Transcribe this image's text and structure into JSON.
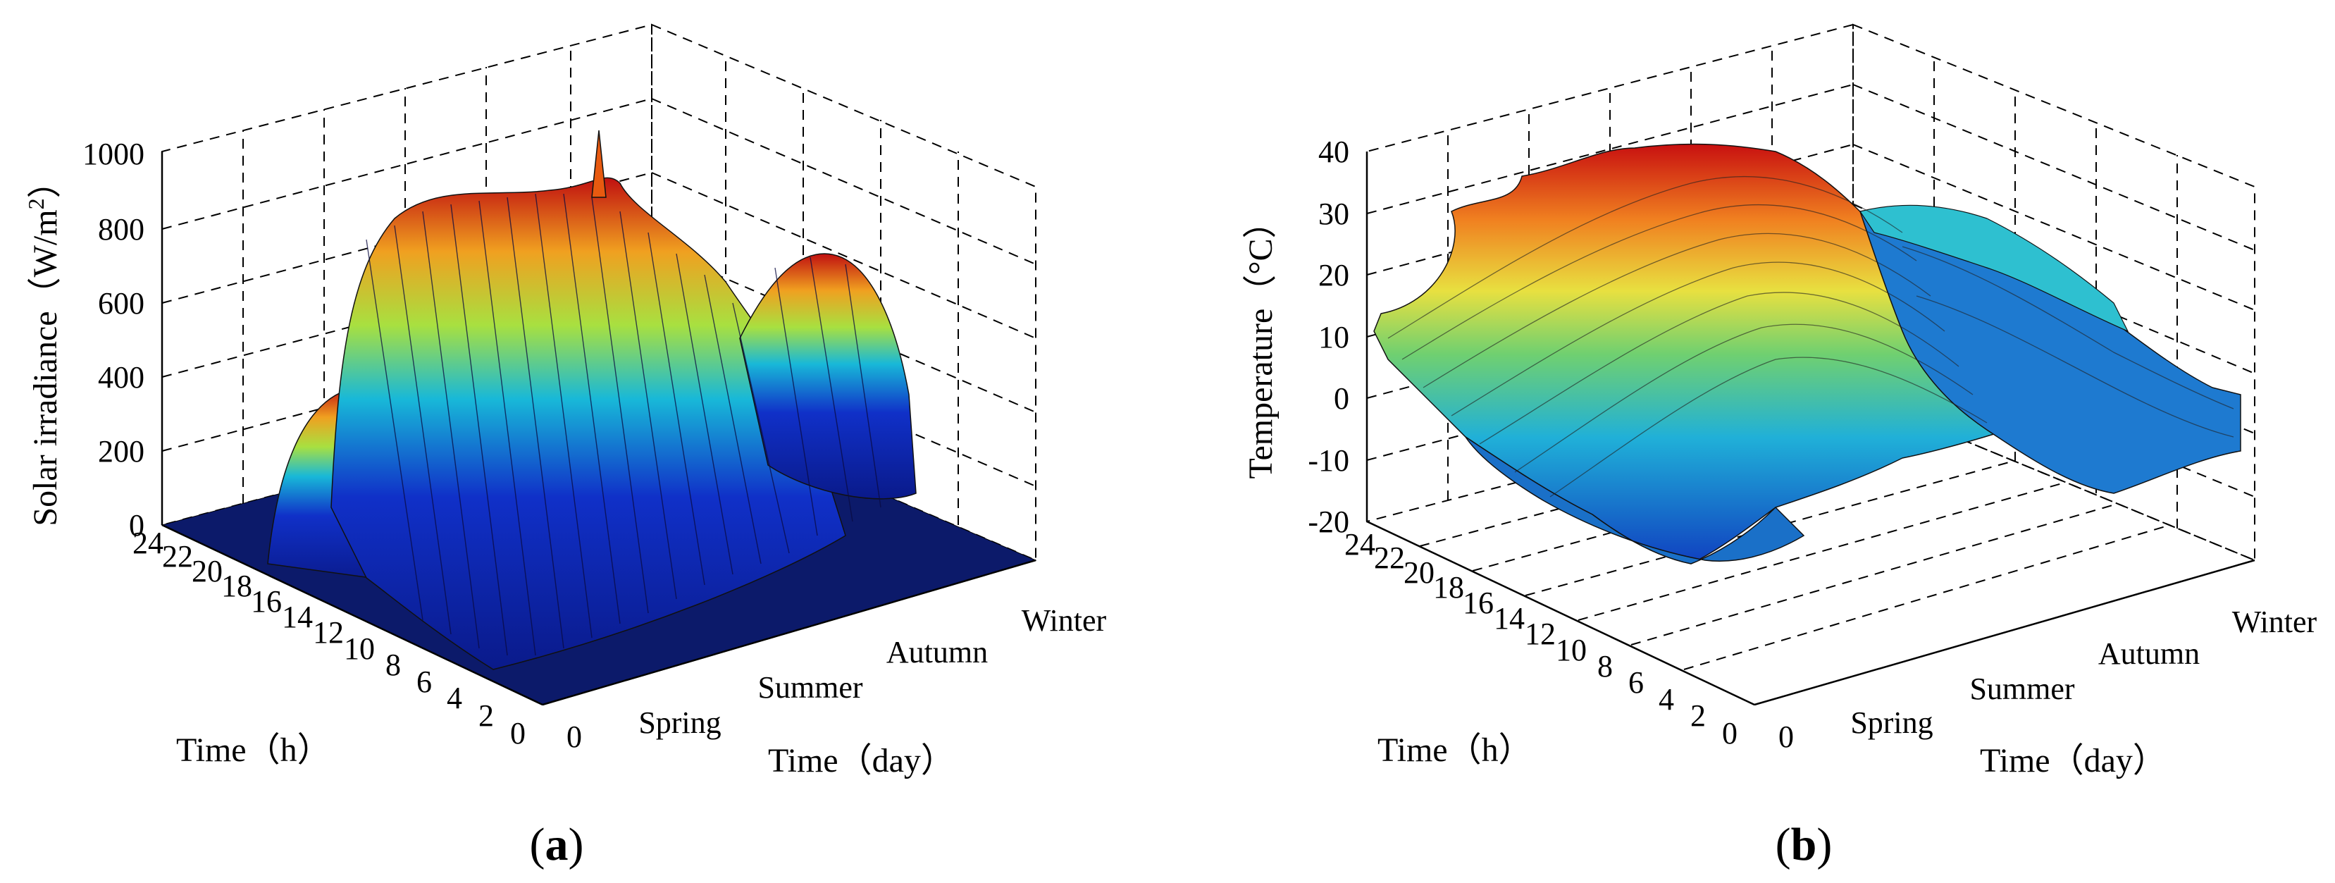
{
  "chart_data": [
    {
      "type": "surface",
      "panel_label": "a",
      "title": "",
      "zlabel": "Solar irradiance（W/m",
      "zlabel_sup": "2",
      "zlabel_close": "）",
      "xlabel": "Time（h）",
      "ylabel": "Time（day）",
      "zlim": [
        0,
        1000
      ],
      "z_ticks": [
        "0",
        "200",
        "400",
        "600",
        "800",
        "1000"
      ],
      "hour_ticks": [
        "0",
        "2",
        "4",
        "6",
        "8",
        "10",
        "12",
        "14",
        "16",
        "18",
        "20",
        "22",
        "24"
      ],
      "day_ticks": [
        "0",
        "Spring",
        "Summer",
        "Autumn",
        "Winter"
      ],
      "description_values": {
        "daylight_hours": [
          6,
          19
        ],
        "peak_irradiance_summer": 880,
        "max_spike": 1000,
        "winter_peak": 600,
        "spring_peak": 450
      }
    },
    {
      "type": "surface",
      "panel_label": "b",
      "title": "",
      "zlabel": "Temperature（°C）",
      "xlabel": "Time（h）",
      "ylabel": "Time（day）",
      "zlim": [
        -20,
        40
      ],
      "z_ticks": [
        "-20",
        "-10",
        "0",
        "10",
        "20",
        "30",
        "40"
      ],
      "hour_ticks": [
        "0",
        "2",
        "4",
        "6",
        "8",
        "10",
        "12",
        "14",
        "16",
        "18",
        "20",
        "22",
        "24"
      ],
      "day_ticks": [
        "0",
        "Spring",
        "Summer",
        "Autumn",
        "Winter"
      ],
      "description_values": {
        "spring_temp": 5,
        "summer_temp_max": 35,
        "autumn_temp": 15,
        "winter_temp": -5
      }
    }
  ],
  "panels": {
    "a": "a",
    "b": "b"
  }
}
